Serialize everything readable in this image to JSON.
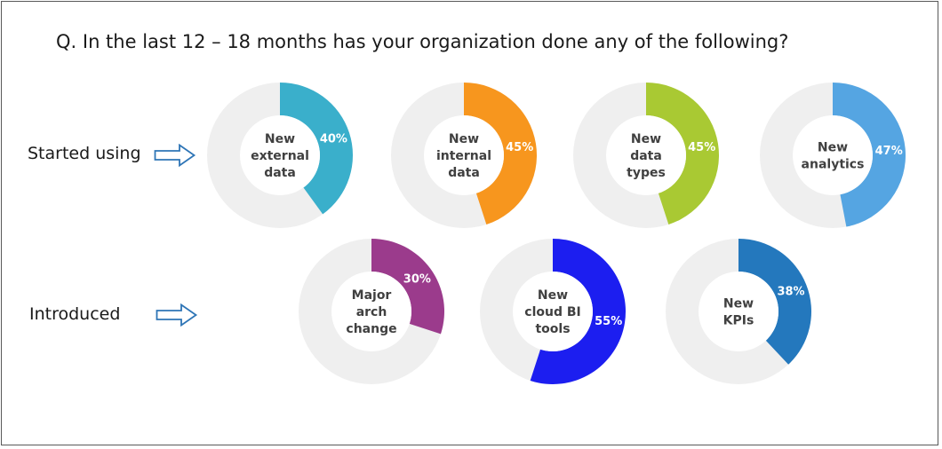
{
  "question": "Q. In the last 12 – 18 months has your organization done any of the following?",
  "rows": {
    "started": "Started using",
    "introduced": "Introduced"
  },
  "colors": {
    "track": "#efefef",
    "arrow_stroke": "#2e75b6",
    "center_text": "#404040",
    "percent_text": "#ffffff"
  },
  "chart_data": [
    {
      "type": "pie",
      "row": "started",
      "label": [
        "New",
        "external",
        "data"
      ],
      "percent_label": "40%",
      "value": 40,
      "color": "#3aafcb"
    },
    {
      "type": "pie",
      "row": "started",
      "label": [
        "New",
        "internal",
        "data"
      ],
      "percent_label": "45%",
      "value": 45,
      "color": "#f7961e"
    },
    {
      "type": "pie",
      "row": "started",
      "label": [
        "New",
        "data",
        "types"
      ],
      "percent_label": "45%",
      "value": 45,
      "color": "#a9c933"
    },
    {
      "type": "pie",
      "row": "started",
      "label": [
        "New",
        "analytics"
      ],
      "percent_label": "47%",
      "value": 47,
      "color": "#55a5e2"
    },
    {
      "type": "pie",
      "row": "introduced",
      "label": [
        "Major",
        "arch",
        "change"
      ],
      "percent_label": "30%",
      "value": 30,
      "color": "#9b3b8c"
    },
    {
      "type": "pie",
      "row": "introduced",
      "label": [
        "New",
        "cloud BI",
        "tools"
      ],
      "percent_label": "55%",
      "value": 55,
      "color": "#1c1ef0"
    },
    {
      "type": "pie",
      "row": "introduced",
      "label": [
        "New",
        "KPIs"
      ],
      "percent_label": "38%",
      "value": 38,
      "color": "#2478bd"
    }
  ]
}
